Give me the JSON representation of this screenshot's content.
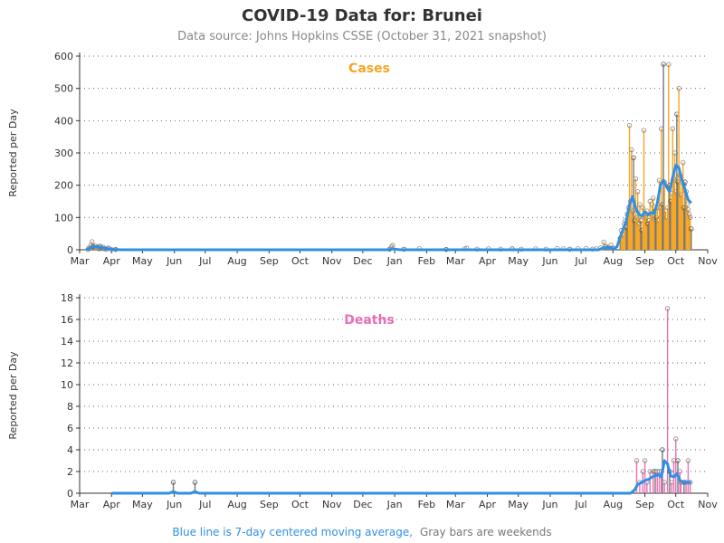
{
  "title": "COVID-19 Data for: Brunei",
  "subtitle": "Data source: Johns Hopkins CSSE (October 31, 2021 snapshot)",
  "footer": {
    "blue_note": "Blue line is 7-day centered moving average,",
    "gray_note": "Gray bars are weekends"
  },
  "colors": {
    "cases": "#f5a623",
    "deaths": "#e86fb4",
    "moving_average": "#2f8fe6",
    "weekend": "#777777"
  },
  "chart_data": [
    {
      "type": "bar",
      "title": "Cases",
      "ylabel": "Reported per Day",
      "ylim": [
        0,
        600
      ],
      "yticks": [
        0,
        100,
        200,
        300,
        400,
        500,
        600
      ],
      "x_start": "2020-03-01",
      "x_end": "2021-11-01",
      "xticks": [
        "Mar",
        "Apr",
        "May",
        "Jun",
        "Jul",
        "Aug",
        "Sep",
        "Oct",
        "Nov",
        "Dec",
        "Jan",
        "Feb",
        "Mar",
        "Apr",
        "May",
        "Jun",
        "Jul",
        "Aug",
        "Sep",
        "Oct",
        "Nov"
      ],
      "xtick_dates": [
        "2020-03-01",
        "2020-04-01",
        "2020-05-01",
        "2020-06-01",
        "2020-07-01",
        "2020-08-01",
        "2020-09-01",
        "2020-10-01",
        "2020-11-01",
        "2020-12-01",
        "2021-01-01",
        "2021-02-01",
        "2021-03-01",
        "2021-04-01",
        "2021-05-01",
        "2021-06-01",
        "2021-07-01",
        "2021-08-01",
        "2021-09-01",
        "2021-10-01",
        "2021-11-01"
      ],
      "grid": "horizontal dotted",
      "series": [
        {
          "name": "Cases",
          "points": [
            [
              "2020-03-09",
              1
            ],
            [
              "2020-03-10",
              6
            ],
            [
              "2020-03-11",
              4
            ],
            [
              "2020-03-12",
              14
            ],
            [
              "2020-03-13",
              25
            ],
            [
              "2020-03-14",
              10
            ],
            [
              "2020-03-15",
              8
            ],
            [
              "2020-03-16",
              12
            ],
            [
              "2020-03-17",
              5
            ],
            [
              "2020-03-18",
              7
            ],
            [
              "2020-03-19",
              9
            ],
            [
              "2020-03-20",
              3
            ],
            [
              "2020-03-21",
              11
            ],
            [
              "2020-03-22",
              6
            ],
            [
              "2020-03-23",
              4
            ],
            [
              "2020-03-24",
              8
            ],
            [
              "2020-03-25",
              3
            ],
            [
              "2020-03-27",
              2
            ],
            [
              "2020-03-29",
              5
            ],
            [
              "2020-04-01",
              1
            ],
            [
              "2020-04-05",
              1
            ],
            [
              "2020-12-27",
              2
            ],
            [
              "2020-12-29",
              9
            ],
            [
              "2020-12-30",
              14
            ],
            [
              "2021-01-10",
              2
            ],
            [
              "2021-01-25",
              3
            ],
            [
              "2021-02-20",
              1
            ],
            [
              "2021-03-10",
              3
            ],
            [
              "2021-03-12",
              5
            ],
            [
              "2021-03-22",
              2
            ],
            [
              "2021-04-02",
              3
            ],
            [
              "2021-04-14",
              2
            ],
            [
              "2021-04-25",
              3
            ],
            [
              "2021-05-04",
              2
            ],
            [
              "2021-05-18",
              3
            ],
            [
              "2021-05-28",
              2
            ],
            [
              "2021-06-08",
              4
            ],
            [
              "2021-06-14",
              3
            ],
            [
              "2021-06-20",
              2
            ],
            [
              "2021-06-28",
              3
            ],
            [
              "2021-07-06",
              4
            ],
            [
              "2021-07-12",
              2
            ],
            [
              "2021-07-16",
              3
            ],
            [
              "2021-07-20",
              6
            ],
            [
              "2021-07-23",
              24
            ],
            [
              "2021-07-25",
              10
            ],
            [
              "2021-07-27",
              8
            ],
            [
              "2021-07-30",
              15
            ],
            [
              "2021-08-01",
              5
            ],
            [
              "2021-08-08",
              35
            ],
            [
              "2021-08-09",
              60
            ],
            [
              "2021-08-10",
              50
            ],
            [
              "2021-08-11",
              45
            ],
            [
              "2021-08-12",
              80
            ],
            [
              "2021-08-13",
              90
            ],
            [
              "2021-08-14",
              70
            ],
            [
              "2021-08-15",
              110
            ],
            [
              "2021-08-16",
              130
            ],
            [
              "2021-08-17",
              385
            ],
            [
              "2021-08-18",
              150
            ],
            [
              "2021-08-19",
              310
            ],
            [
              "2021-08-20",
              120
            ],
            [
              "2021-08-21",
              285
            ],
            [
              "2021-08-22",
              90
            ],
            [
              "2021-08-23",
              220
            ],
            [
              "2021-08-24",
              100
            ],
            [
              "2021-08-25",
              180
            ],
            [
              "2021-08-26",
              80
            ],
            [
              "2021-08-27",
              140
            ],
            [
              "2021-08-28",
              90
            ],
            [
              "2021-08-29",
              60
            ],
            [
              "2021-08-30",
              130
            ],
            [
              "2021-08-31",
              370
            ],
            [
              "2021-09-01",
              110
            ],
            [
              "2021-09-02",
              100
            ],
            [
              "2021-09-03",
              120
            ],
            [
              "2021-09-04",
              80
            ],
            [
              "2021-09-05",
              90
            ],
            [
              "2021-09-06",
              150
            ],
            [
              "2021-09-07",
              110
            ],
            [
              "2021-09-08",
              140
            ],
            [
              "2021-09-09",
              160
            ],
            [
              "2021-09-10",
              95
            ],
            [
              "2021-09-11",
              120
            ],
            [
              "2021-09-12",
              100
            ],
            [
              "2021-09-13",
              130
            ],
            [
              "2021-09-14",
              90
            ],
            [
              "2021-09-15",
              215
            ],
            [
              "2021-09-16",
              130
            ],
            [
              "2021-09-17",
              375
            ],
            [
              "2021-09-18",
              140
            ],
            [
              "2021-09-19",
              575
            ],
            [
              "2021-09-20",
              210
            ],
            [
              "2021-09-21",
              120
            ],
            [
              "2021-09-22",
              100
            ],
            [
              "2021-09-23",
              130
            ],
            [
              "2021-09-24",
              574
            ],
            [
              "2021-09-25",
              200
            ],
            [
              "2021-09-26",
              150
            ],
            [
              "2021-09-27",
              175
            ],
            [
              "2021-09-28",
              375
            ],
            [
              "2021-09-29",
              220
            ],
            [
              "2021-09-30",
              300
            ],
            [
              "2021-10-01",
              180
            ],
            [
              "2021-10-02",
              420
            ],
            [
              "2021-10-03",
              210
            ],
            [
              "2021-10-04",
              500
            ],
            [
              "2021-10-05",
              230
            ],
            [
              "2021-10-06",
              170
            ],
            [
              "2021-10-07",
              210
            ],
            [
              "2021-10-08",
              270
            ],
            [
              "2021-10-09",
              130
            ],
            [
              "2021-10-10",
              210
            ],
            [
              "2021-10-11",
              180
            ],
            [
              "2021-10-12",
              140
            ],
            [
              "2021-10-13",
              125
            ],
            [
              "2021-10-14",
              110
            ],
            [
              "2021-10-15",
              100
            ],
            [
              "2021-10-16",
              65
            ]
          ]
        },
        {
          "name": "7-day centered moving average",
          "points": [
            [
              "2020-03-08",
              0
            ],
            [
              "2020-03-11",
              5
            ],
            [
              "2020-03-14",
              9
            ],
            [
              "2020-03-17",
              10
            ],
            [
              "2020-03-20",
              8
            ],
            [
              "2020-03-23",
              7
            ],
            [
              "2020-03-26",
              5
            ],
            [
              "2020-03-29",
              3
            ],
            [
              "2020-04-03",
              1
            ],
            [
              "2020-04-10",
              0
            ],
            [
              "2020-12-26",
              0
            ],
            [
              "2020-12-29",
              2
            ],
            [
              "2021-01-02",
              2
            ],
            [
              "2021-01-06",
              0
            ],
            [
              "2021-07-18",
              0
            ],
            [
              "2021-07-22",
              5
            ],
            [
              "2021-07-26",
              8
            ],
            [
              "2021-07-30",
              6
            ],
            [
              "2021-08-02",
              2
            ],
            [
              "2021-08-05",
              10
            ],
            [
              "2021-08-08",
              40
            ],
            [
              "2021-08-11",
              65
            ],
            [
              "2021-08-14",
              90
            ],
            [
              "2021-08-17",
              140
            ],
            [
              "2021-08-20",
              165
            ],
            [
              "2021-08-23",
              130
            ],
            [
              "2021-08-26",
              110
            ],
            [
              "2021-08-29",
              105
            ],
            [
              "2021-09-01",
              118
            ],
            [
              "2021-09-04",
              108
            ],
            [
              "2021-09-07",
              115
            ],
            [
              "2021-09-10",
              112
            ],
            [
              "2021-09-13",
              145
            ],
            [
              "2021-09-16",
              200
            ],
            [
              "2021-09-19",
              215
            ],
            [
              "2021-09-22",
              195
            ],
            [
              "2021-09-25",
              180
            ],
            [
              "2021-09-28",
              225
            ],
            [
              "2021-10-01",
              262
            ],
            [
              "2021-10-04",
              255
            ],
            [
              "2021-10-07",
              215
            ],
            [
              "2021-10-10",
              185
            ],
            [
              "2021-10-13",
              155
            ],
            [
              "2021-10-16",
              145
            ]
          ]
        }
      ]
    },
    {
      "type": "bar",
      "title": "Deaths",
      "ylabel": "Reported per Day",
      "ylim": [
        0,
        18
      ],
      "yticks": [
        0,
        2,
        4,
        6,
        8,
        10,
        12,
        14,
        16,
        18
      ],
      "x_start": "2020-03-01",
      "x_end": "2021-11-01",
      "xticks": [
        "Mar",
        "Apr",
        "May",
        "Jun",
        "Jul",
        "Aug",
        "Sep",
        "Oct",
        "Nov",
        "Dec",
        "Jan",
        "Feb",
        "Mar",
        "Apr",
        "May",
        "Jun",
        "Jul",
        "Aug",
        "Sep",
        "Oct",
        "Nov"
      ],
      "xtick_dates": [
        "2020-03-01",
        "2020-04-01",
        "2020-05-01",
        "2020-06-01",
        "2020-07-01",
        "2020-08-01",
        "2020-09-01",
        "2020-10-01",
        "2020-11-01",
        "2020-12-01",
        "2021-01-01",
        "2021-02-01",
        "2021-03-01",
        "2021-04-01",
        "2021-05-01",
        "2021-06-01",
        "2021-07-01",
        "2021-08-01",
        "2021-09-01",
        "2021-10-01",
        "2021-11-01"
      ],
      "grid": "horizontal dotted",
      "series": [
        {
          "name": "Deaths",
          "points": [
            [
              "2020-05-31",
              1
            ],
            [
              "2020-06-21",
              1
            ],
            [
              "2021-08-24",
              3
            ],
            [
              "2021-08-27",
              1
            ],
            [
              "2021-08-30",
              2
            ],
            [
              "2021-09-01",
              3
            ],
            [
              "2021-09-03",
              1
            ],
            [
              "2021-09-06",
              2
            ],
            [
              "2021-09-09",
              2
            ],
            [
              "2021-09-11",
              2
            ],
            [
              "2021-09-13",
              2
            ],
            [
              "2021-09-15",
              2
            ],
            [
              "2021-09-17",
              2
            ],
            [
              "2021-09-18",
              4
            ],
            [
              "2021-09-20",
              1
            ],
            [
              "2021-09-23",
              17
            ],
            [
              "2021-09-25",
              2
            ],
            [
              "2021-09-27",
              1
            ],
            [
              "2021-09-29",
              3
            ],
            [
              "2021-10-01",
              5
            ],
            [
              "2021-10-03",
              3
            ],
            [
              "2021-10-05",
              2
            ],
            [
              "2021-10-06",
              1
            ],
            [
              "2021-10-09",
              1
            ],
            [
              "2021-10-11",
              1
            ],
            [
              "2021-10-13",
              3
            ],
            [
              "2021-10-15",
              1
            ]
          ]
        },
        {
          "name": "7-day centered moving average",
          "points": [
            [
              "2020-04-01",
              0
            ],
            [
              "2020-05-27",
              0
            ],
            [
              "2020-05-31",
              0.15
            ],
            [
              "2020-06-04",
              0
            ],
            [
              "2020-06-17",
              0
            ],
            [
              "2020-06-21",
              0.15
            ],
            [
              "2020-06-25",
              0
            ],
            [
              "2021-08-18",
              0
            ],
            [
              "2021-08-22",
              0.3
            ],
            [
              "2021-08-25",
              0.8
            ],
            [
              "2021-08-29",
              1.0
            ],
            [
              "2021-09-02",
              1.2
            ],
            [
              "2021-09-05",
              1.3
            ],
            [
              "2021-09-08",
              1.5
            ],
            [
              "2021-09-11",
              1.6
            ],
            [
              "2021-09-14",
              1.7
            ],
            [
              "2021-09-17",
              1.5
            ],
            [
              "2021-09-20",
              3.0
            ],
            [
              "2021-09-23",
              2.7
            ],
            [
              "2021-09-26",
              1.6
            ],
            [
              "2021-09-29",
              1.5
            ],
            [
              "2021-10-02",
              1.8
            ],
            [
              "2021-10-05",
              1.2
            ],
            [
              "2021-10-08",
              1.0
            ],
            [
              "2021-10-11",
              1.0
            ],
            [
              "2021-10-14",
              1.0
            ],
            [
              "2021-10-16",
              1.0
            ]
          ]
        }
      ]
    }
  ]
}
